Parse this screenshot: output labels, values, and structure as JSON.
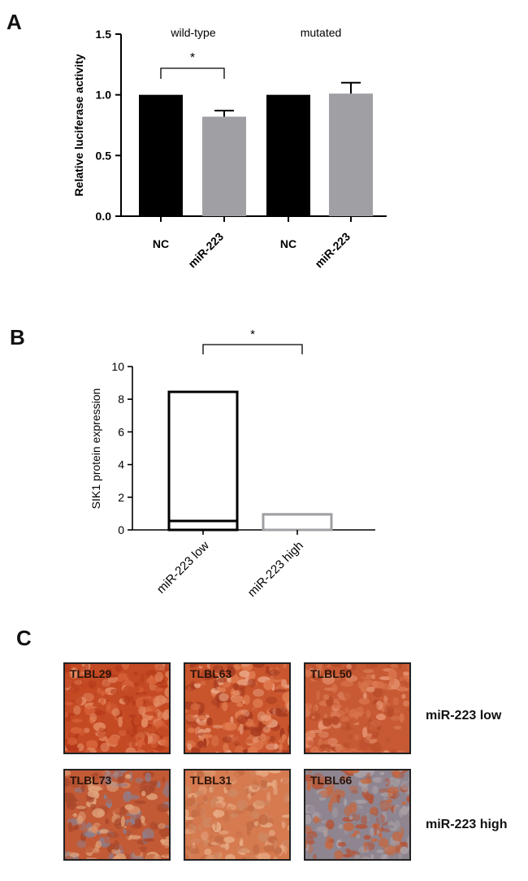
{
  "panels": {
    "a": "A",
    "b": "B",
    "c": "C"
  },
  "chart_data": [
    {
      "type": "bar",
      "panel": "A",
      "ylabel": "Relative luciferase activity",
      "ylim": [
        0,
        1.5
      ],
      "yticks": [
        "0.0",
        "0.5",
        "1.0",
        "1.5"
      ],
      "groups": [
        "wild-type",
        "mutated"
      ],
      "categories": [
        "NC",
        "miR-223",
        "NC",
        "miR-223"
      ],
      "values": [
        1.0,
        0.82,
        1.0,
        1.01
      ],
      "errors": [
        0,
        0.05,
        0,
        0.09
      ],
      "colors": [
        "#000000",
        "#a0a0a4",
        "#000000",
        "#a0a0a4"
      ],
      "significance": {
        "label": "*",
        "between": [
          0,
          1
        ]
      }
    },
    {
      "type": "bar",
      "panel": "B",
      "ylabel": "SIK1 protein expression",
      "ylim": [
        0,
        10
      ],
      "yticks": [
        "0",
        "2",
        "4",
        "6",
        "8",
        "10"
      ],
      "categories": [
        "miR-223 low",
        "miR-223 high"
      ],
      "boxes": [
        {
          "low": 0,
          "median": 0.55,
          "high": 8.45,
          "color": "#000000"
        },
        {
          "low": 0,
          "median": 0.95,
          "high": 0.95,
          "color": "#a0a0a4"
        }
      ],
      "significance": {
        "label": "*",
        "between": [
          0,
          1
        ]
      }
    }
  ],
  "panel_c": {
    "rows": [
      {
        "label": "miR-223 low",
        "tiles": [
          "TLBL29",
          "TLBL63",
          "TLBL50"
        ]
      },
      {
        "label": "miR-223 high",
        "tiles": [
          "TLBL73",
          "TLBL31",
          "TLBL66"
        ]
      }
    ]
  }
}
